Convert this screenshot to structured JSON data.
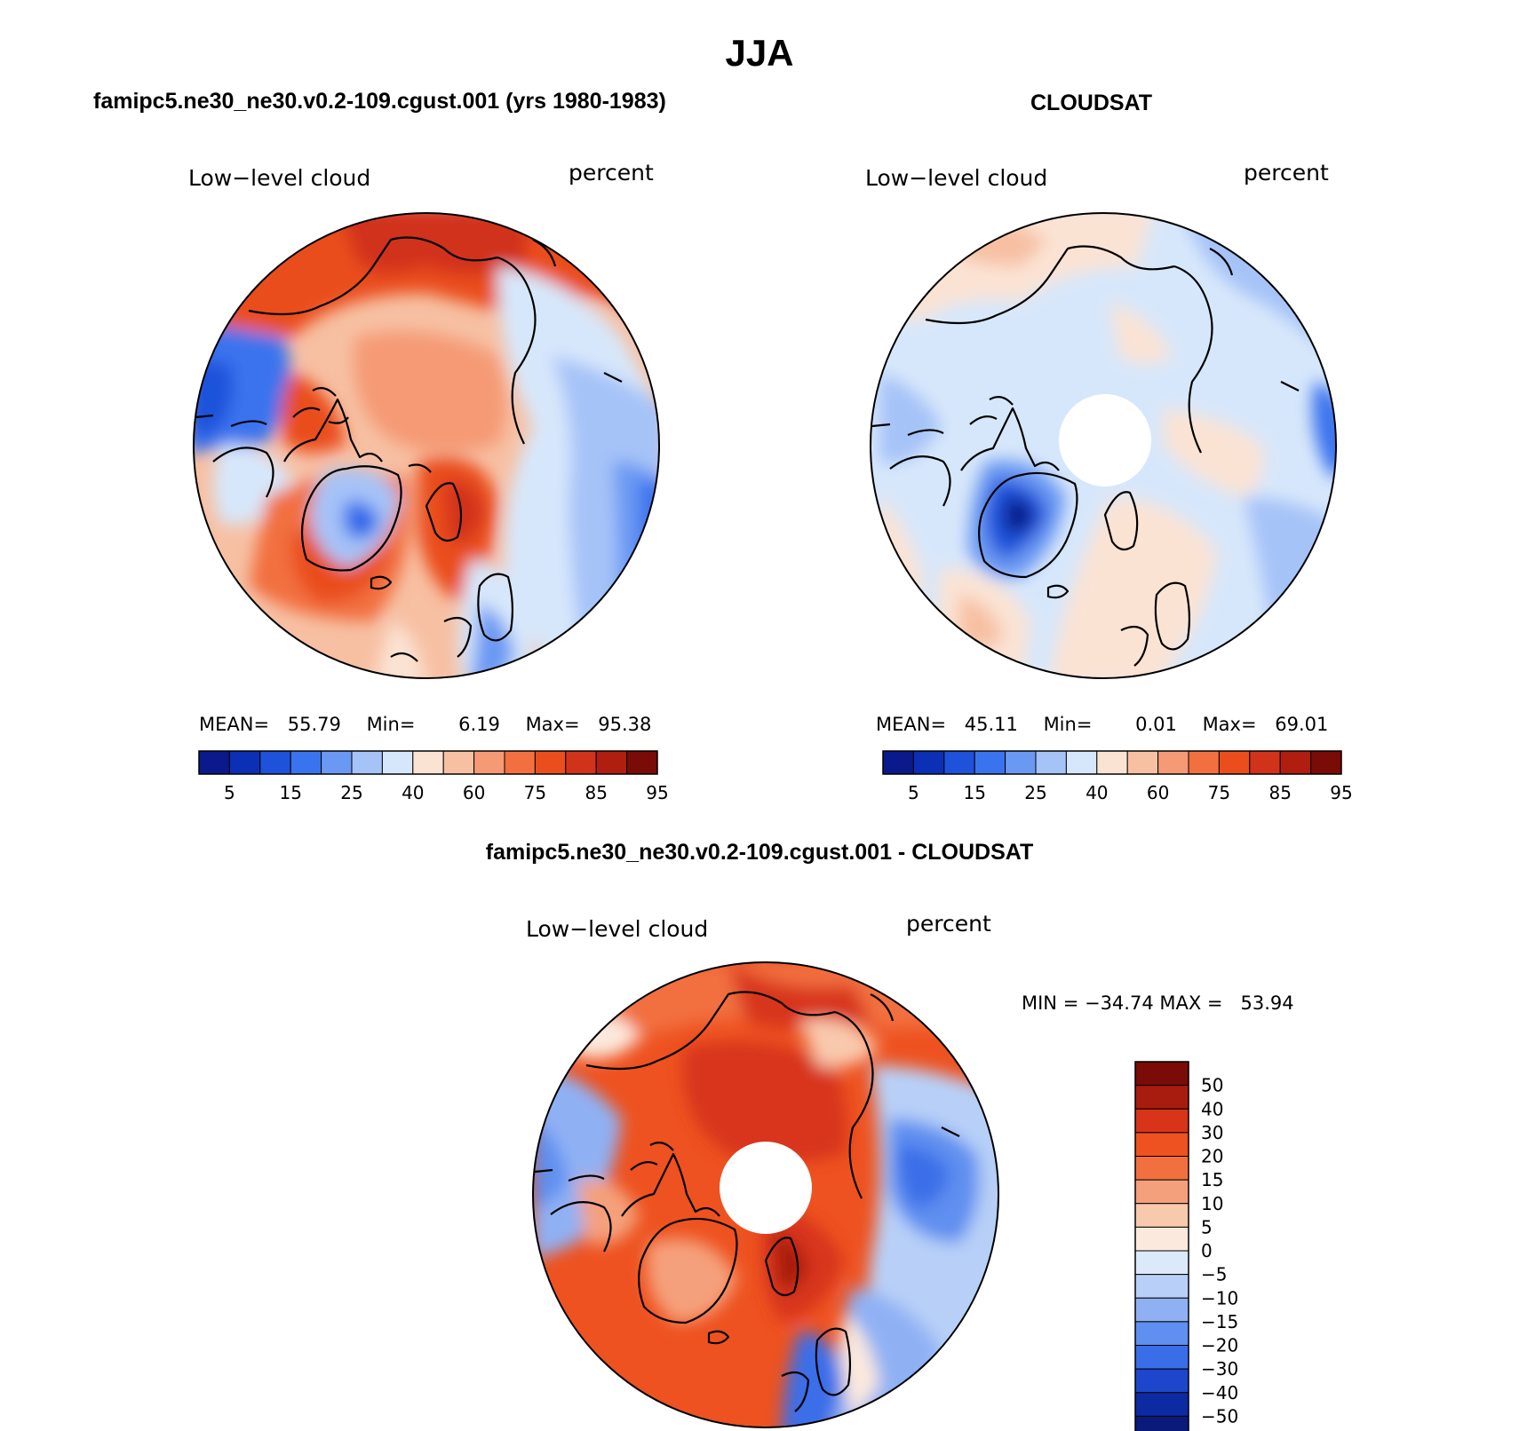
{
  "page_title": "JJA",
  "panels": [
    {
      "id": "model",
      "header": "famipc5.ne30_ne30.v0.2-109.cgust.001 (yrs 1980-1983)",
      "variable": "Low−level cloud",
      "units": "percent",
      "stats": {
        "mean_label": "MEAN=",
        "mean": "55.79",
        "min_label": "Min=",
        "min": "6.19",
        "max_label": "Max=",
        "max": "95.38"
      },
      "colorbar_labels": [
        "5",
        "15",
        "25",
        "40",
        "60",
        "75",
        "85",
        "95"
      ]
    },
    {
      "id": "obs",
      "header": "CLOUDSAT",
      "variable": "Low−level cloud",
      "units": "percent",
      "stats": {
        "mean_label": "MEAN=",
        "mean": "45.11",
        "min_label": "Min=",
        "min": "0.01",
        "max_label": "Max=",
        "max": "69.01"
      },
      "colorbar_labels": [
        "5",
        "15",
        "25",
        "40",
        "60",
        "75",
        "85",
        "95"
      ]
    },
    {
      "id": "diff",
      "header": "famipc5.ne30_ne30.v0.2-109.cgust.001 - CLOUDSAT",
      "variable": "Low−level cloud",
      "units": "percent",
      "minmax": "MIN = −34.74 MAX =   53.94",
      "colorbar_labels": [
        "50",
        "40",
        "30",
        "20",
        "15",
        "10",
        "5",
        "0",
        "−5",
        "−10",
        "−15",
        "−20",
        "−30",
        "−40",
        "−50"
      ]
    }
  ],
  "colors": {
    "abs_scale": [
      "#0a1a8c",
      "#0b2fb5",
      "#1f52db",
      "#3a73ee",
      "#6a99f3",
      "#a6c3f8",
      "#d7e7fb",
      "#fbe3d4",
      "#f7c0a3",
      "#f59a75",
      "#f2703f",
      "#ea4e1c",
      "#d1331a",
      "#b01e10",
      "#7a0b06"
    ],
    "diff_scale": [
      "#7a0b06",
      "#a81b0f",
      "#d8341a",
      "#ee5220",
      "#f2703f",
      "#f5a07c",
      "#f9c9ad",
      "#fce9dd",
      "#dbe9fb",
      "#b8d0f8",
      "#8fb1f4",
      "#5f8ff0",
      "#3a6ee8",
      "#1d46cc",
      "#0c2ba3",
      "#0a1a7a"
    ]
  },
  "map_features": {
    "continents": [
      "Greenland",
      "Canadian Arctic Archipelago",
      "Scandinavia",
      "Alaska",
      "Siberia",
      "Iceland"
    ]
  }
}
